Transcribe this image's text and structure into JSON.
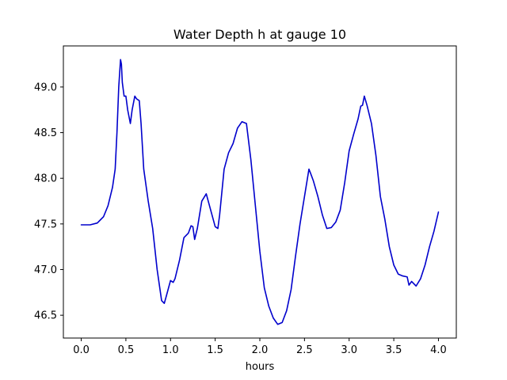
{
  "chart_data": {
    "type": "line",
    "title": "Water Depth h at gauge 10",
    "xlabel": "hours",
    "ylabel": "",
    "xlim": [
      -0.2,
      4.2
    ],
    "ylim": [
      46.25,
      49.45
    ],
    "xticks": [
      0.0,
      0.5,
      1.0,
      1.5,
      2.0,
      2.5,
      3.0,
      3.5,
      4.0
    ],
    "xtick_labels": [
      "0.0",
      "0.5",
      "1.0",
      "1.5",
      "2.0",
      "2.5",
      "3.0",
      "3.5",
      "4.0"
    ],
    "yticks": [
      46.5,
      47.0,
      47.5,
      48.0,
      48.5,
      49.0
    ],
    "ytick_labels": [
      "46.5",
      "47.0",
      "47.5",
      "48.0",
      "48.5",
      "49.0"
    ],
    "grid": false,
    "series": [
      {
        "color": "#0000cc",
        "x": [
          0.0,
          0.1,
          0.18,
          0.25,
          0.3,
          0.35,
          0.38,
          0.4,
          0.42,
          0.44,
          0.45,
          0.46,
          0.48,
          0.5,
          0.52,
          0.55,
          0.57,
          0.6,
          0.62,
          0.65,
          0.67,
          0.7,
          0.75,
          0.8,
          0.85,
          0.9,
          0.93,
          0.95,
          1.0,
          1.03,
          1.05,
          1.1,
          1.15,
          1.2,
          1.23,
          1.25,
          1.27,
          1.3,
          1.35,
          1.4,
          1.45,
          1.5,
          1.53,
          1.55,
          1.6,
          1.65,
          1.7,
          1.75,
          1.8,
          1.85,
          1.9,
          1.95,
          2.0,
          2.05,
          2.1,
          2.15,
          2.2,
          2.25,
          2.3,
          2.35,
          2.4,
          2.45,
          2.5,
          2.55,
          2.57,
          2.6,
          2.65,
          2.7,
          2.75,
          2.8,
          2.85,
          2.9,
          2.95,
          3.0,
          3.05,
          3.1,
          3.13,
          3.15,
          3.17,
          3.2,
          3.25,
          3.3,
          3.35,
          3.4,
          3.45,
          3.5,
          3.55,
          3.6,
          3.65,
          3.67,
          3.7,
          3.75,
          3.8,
          3.85,
          3.9,
          3.95,
          4.0
        ],
        "y": [
          47.49,
          47.49,
          47.51,
          47.58,
          47.7,
          47.9,
          48.1,
          48.5,
          49.0,
          49.3,
          49.25,
          49.05,
          48.9,
          48.9,
          48.75,
          48.6,
          48.75,
          48.9,
          48.87,
          48.85,
          48.6,
          48.1,
          47.75,
          47.45,
          47.0,
          46.66,
          46.63,
          46.7,
          46.88,
          46.86,
          46.9,
          47.1,
          47.35,
          47.4,
          47.48,
          47.47,
          47.33,
          47.45,
          47.75,
          47.83,
          47.65,
          47.47,
          47.45,
          47.6,
          48.1,
          48.28,
          48.38,
          48.55,
          48.62,
          48.6,
          48.2,
          47.7,
          47.2,
          46.8,
          46.6,
          46.47,
          46.4,
          46.42,
          46.55,
          46.78,
          47.15,
          47.5,
          47.8,
          48.1,
          48.05,
          47.97,
          47.8,
          47.6,
          47.45,
          47.46,
          47.52,
          47.65,
          47.95,
          48.3,
          48.48,
          48.65,
          48.79,
          48.8,
          48.9,
          48.8,
          48.6,
          48.25,
          47.8,
          47.55,
          47.25,
          47.05,
          46.95,
          46.93,
          46.92,
          46.83,
          46.87,
          46.82,
          46.9,
          47.05,
          47.25,
          47.42,
          47.63
        ]
      }
    ]
  }
}
